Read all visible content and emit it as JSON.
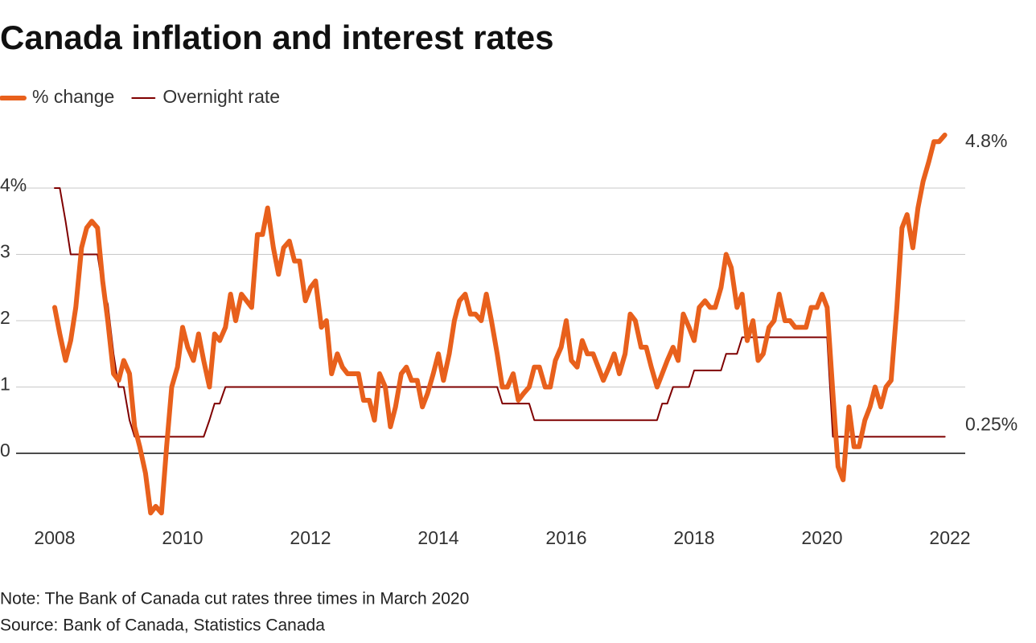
{
  "chart_data": {
    "type": "line",
    "title": "Canada inflation and interest rates",
    "note": "Note: The Bank of Canada cut rates three times in March 2020",
    "source": "Source: Bank of Canada, Statistics Canada",
    "x": [
      2008,
      2008.08,
      2008.17,
      2008.25,
      2008.33,
      2008.42,
      2008.5,
      2008.58,
      2008.67,
      2008.75,
      2008.83,
      2008.92,
      2009,
      2009.08,
      2009.17,
      2009.25,
      2009.33,
      2009.42,
      2009.5,
      2009.58,
      2009.67,
      2009.75,
      2009.83,
      2009.92,
      2010,
      2010.08,
      2010.17,
      2010.25,
      2010.33,
      2010.42,
      2010.5,
      2010.58,
      2010.67,
      2010.75,
      2010.83,
      2010.92,
      2011,
      2011.08,
      2011.17,
      2011.25,
      2011.33,
      2011.42,
      2011.5,
      2011.58,
      2011.67,
      2011.75,
      2011.83,
      2011.92,
      2012,
      2012.08,
      2012.17,
      2012.25,
      2012.33,
      2012.42,
      2012.5,
      2012.58,
      2012.67,
      2012.75,
      2012.83,
      2012.92,
      2013,
      2013.08,
      2013.17,
      2013.25,
      2013.33,
      2013.42,
      2013.5,
      2013.58,
      2013.67,
      2013.75,
      2013.83,
      2013.92,
      2014,
      2014.08,
      2014.17,
      2014.25,
      2014.33,
      2014.42,
      2014.5,
      2014.58,
      2014.67,
      2014.75,
      2014.83,
      2014.92,
      2015,
      2015.08,
      2015.17,
      2015.25,
      2015.33,
      2015.42,
      2015.5,
      2015.58,
      2015.67,
      2015.75,
      2015.83,
      2015.92,
      2016,
      2016.08,
      2016.17,
      2016.25,
      2016.33,
      2016.42,
      2016.5,
      2016.58,
      2016.67,
      2016.75,
      2016.83,
      2016.92,
      2017,
      2017.08,
      2017.17,
      2017.25,
      2017.33,
      2017.42,
      2017.5,
      2017.58,
      2017.67,
      2017.75,
      2017.83,
      2017.92,
      2018,
      2018.08,
      2018.17,
      2018.25,
      2018.33,
      2018.42,
      2018.5,
      2018.58,
      2018.67,
      2018.75,
      2018.83,
      2018.92,
      2019,
      2019.08,
      2019.17,
      2019.25,
      2019.33,
      2019.42,
      2019.5,
      2019.58,
      2019.67,
      2019.75,
      2019.83,
      2019.92,
      2020,
      2020.08,
      2020.17,
      2020.25,
      2020.33,
      2020.42,
      2020.5,
      2020.58,
      2020.67,
      2020.75,
      2020.83,
      2020.92,
      2021,
      2021.08,
      2021.17,
      2021.25,
      2021.33,
      2021.42,
      2021.5,
      2021.58,
      2021.67,
      2021.75,
      2021.83,
      2021.92
    ],
    "series": [
      {
        "name": "% change",
        "color": "#e8601c",
        "width": 6,
        "values": [
          2.2,
          1.8,
          1.4,
          1.7,
          2.2,
          3.1,
          3.4,
          3.5,
          3.4,
          2.6,
          2.0,
          1.2,
          1.1,
          1.4,
          1.2,
          0.4,
          0.1,
          -0.3,
          -0.9,
          -0.8,
          -0.9,
          0.1,
          1.0,
          1.3,
          1.9,
          1.6,
          1.4,
          1.8,
          1.4,
          1.0,
          1.8,
          1.7,
          1.9,
          2.4,
          2.0,
          2.4,
          2.3,
          2.2,
          3.3,
          3.3,
          3.7,
          3.1,
          2.7,
          3.1,
          3.2,
          2.9,
          2.9,
          2.3,
          2.5,
          2.6,
          1.9,
          2.0,
          1.2,
          1.5,
          1.3,
          1.2,
          1.2,
          1.2,
          0.8,
          0.8,
          0.5,
          1.2,
          1.0,
          0.4,
          0.7,
          1.2,
          1.3,
          1.1,
          1.1,
          0.7,
          0.9,
          1.2,
          1.5,
          1.1,
          1.5,
          2.0,
          2.3,
          2.4,
          2.1,
          2.1,
          2.0,
          2.4,
          2.0,
          1.5,
          1.0,
          1.0,
          1.2,
          0.8,
          0.9,
          1.0,
          1.3,
          1.3,
          1.0,
          1.0,
          1.4,
          1.6,
          2.0,
          1.4,
          1.3,
          1.7,
          1.5,
          1.5,
          1.3,
          1.1,
          1.3,
          1.5,
          1.2,
          1.5,
          2.1,
          2.0,
          1.6,
          1.6,
          1.3,
          1.0,
          1.2,
          1.4,
          1.6,
          1.4,
          2.1,
          1.9,
          1.7,
          2.2,
          2.3,
          2.2,
          2.2,
          2.5,
          3.0,
          2.8,
          2.2,
          2.4,
          1.7,
          2.0,
          1.4,
          1.5,
          1.9,
          2.0,
          2.4,
          2.0,
          2.0,
          1.9,
          1.9,
          1.9,
          2.2,
          2.2,
          2.4,
          2.2,
          0.9,
          -0.2,
          -0.4,
          0.7,
          0.1,
          0.1,
          0.5,
          0.7,
          1.0,
          0.7,
          1.0,
          1.1,
          2.2,
          3.4,
          3.6,
          3.1,
          3.7,
          4.1,
          4.4,
          4.7,
          4.7,
          4.8
        ]
      },
      {
        "name": "Overnight rate",
        "color": "#7f0000",
        "width": 2,
        "values": [
          4,
          4,
          3.5,
          3,
          3,
          3,
          3,
          3,
          3,
          2.5,
          2.25,
          1.5,
          1,
          1,
          0.5,
          0.25,
          0.25,
          0.25,
          0.25,
          0.25,
          0.25,
          0.25,
          0.25,
          0.25,
          0.25,
          0.25,
          0.25,
          0.25,
          0.25,
          0.5,
          0.75,
          0.75,
          1,
          1,
          1,
          1,
          1,
          1,
          1,
          1,
          1,
          1,
          1,
          1,
          1,
          1,
          1,
          1,
          1,
          1,
          1,
          1,
          1,
          1,
          1,
          1,
          1,
          1,
          1,
          1,
          1,
          1,
          1,
          1,
          1,
          1,
          1,
          1,
          1,
          1,
          1,
          1,
          1,
          1,
          1,
          1,
          1,
          1,
          1,
          1,
          1,
          1,
          1,
          1,
          0.75,
          0.75,
          0.75,
          0.75,
          0.75,
          0.75,
          0.5,
          0.5,
          0.5,
          0.5,
          0.5,
          0.5,
          0.5,
          0.5,
          0.5,
          0.5,
          0.5,
          0.5,
          0.5,
          0.5,
          0.5,
          0.5,
          0.5,
          0.5,
          0.5,
          0.5,
          0.5,
          0.5,
          0.5,
          0.5,
          0.75,
          0.75,
          1,
          1,
          1,
          1,
          1.25,
          1.25,
          1.25,
          1.25,
          1.25,
          1.25,
          1.5,
          1.5,
          1.5,
          1.75,
          1.75,
          1.75,
          1.75,
          1.75,
          1.75,
          1.75,
          1.75,
          1.75,
          1.75,
          1.75,
          1.75,
          1.75,
          1.75,
          1.75,
          1.75,
          1.75,
          0.25,
          0.25,
          0.25,
          0.25,
          0.25,
          0.25,
          0.25,
          0.25,
          0.25,
          0.25,
          0.25,
          0.25,
          0.25,
          0.25,
          0.25,
          0.25,
          0.25,
          0.25,
          0.25,
          0.25,
          0.25,
          0.25
        ]
      }
    ],
    "end_labels": [
      "4.8%",
      "0.25%"
    ],
    "xlim": [
      2008,
      2022
    ],
    "xticks": [
      2008,
      2010,
      2012,
      2014,
      2016,
      2018,
      2020,
      2022
    ],
    "ylim": [
      -1,
      5
    ],
    "yticks": [
      0,
      1,
      2,
      3,
      {
        "value": 4,
        "label": "4%"
      }
    ],
    "grid": true
  }
}
